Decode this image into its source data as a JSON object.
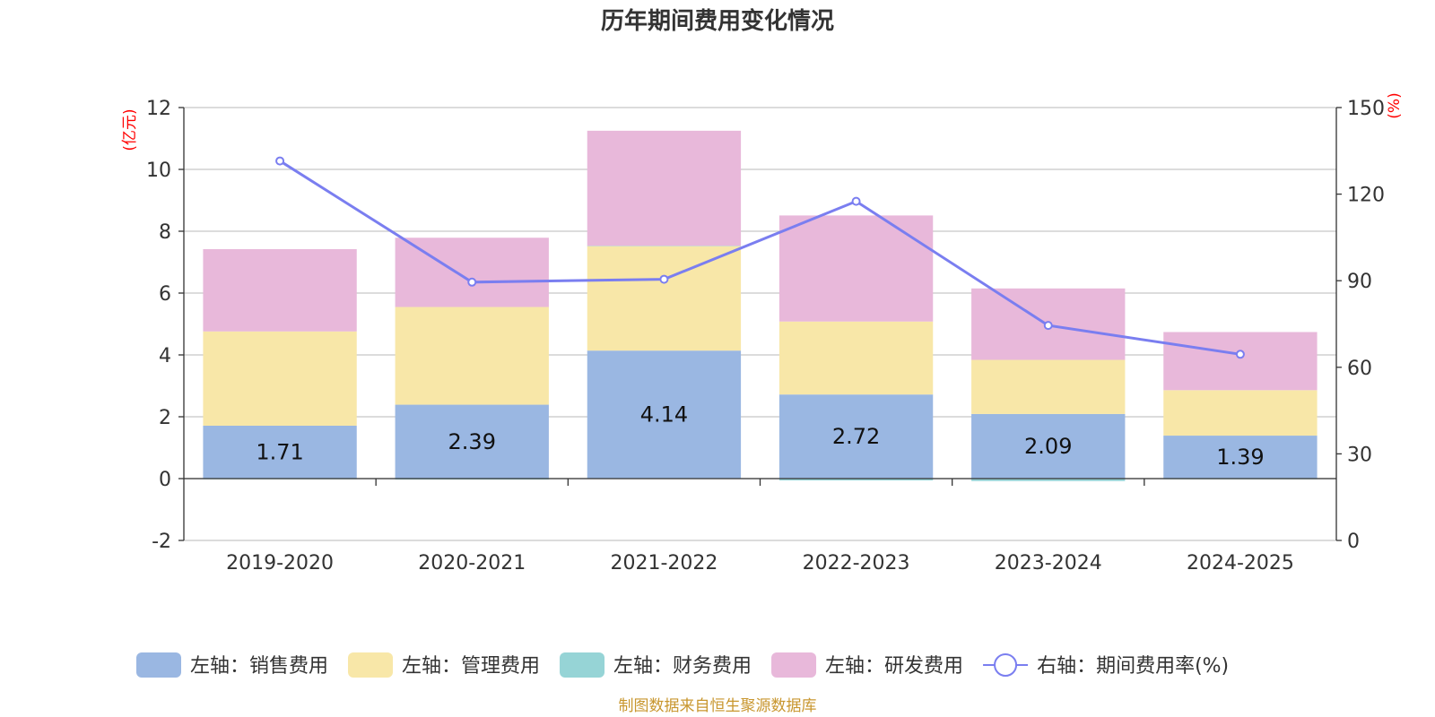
{
  "title": "历年期间费用变化情况",
  "source": "制图数据来自恒生聚源数据库",
  "colors": {
    "sales": "#9ab7e2",
    "admin": "#f8e7a8",
    "finance": "#96d4d6",
    "rd": "#e8b8da",
    "rate": "#7a7ef0",
    "unit": "#ff0000",
    "source": "#c8962e"
  },
  "chart_data": {
    "type": "bar",
    "stacked": true,
    "categories": [
      "2019-2020",
      "2020-2021",
      "2021-2022",
      "2022-2023",
      "2023-2024",
      "2024-2025"
    ],
    "left_axis": {
      "unit": "(亿元)",
      "ylim": [
        -2,
        12
      ],
      "ticks": [
        -2,
        0,
        2,
        4,
        6,
        8,
        10,
        12
      ]
    },
    "right_axis": {
      "unit": "(%)",
      "ylim": [
        0,
        150
      ],
      "ticks": [
        0,
        30,
        60,
        90,
        120,
        150
      ]
    },
    "series": [
      {
        "key": "sales",
        "name": "左轴：销售费用",
        "axis": "left",
        "type": "bar",
        "values": [
          1.71,
          2.39,
          4.14,
          2.72,
          2.09,
          1.39
        ],
        "labels": [
          "1.71",
          "2.39",
          "4.14",
          "2.72",
          "2.09",
          "1.39"
        ]
      },
      {
        "key": "admin",
        "name": "左轴：管理费用",
        "axis": "left",
        "type": "bar",
        "values": [
          3.05,
          3.16,
          3.38,
          2.36,
          1.75,
          1.47
        ]
      },
      {
        "key": "finance",
        "name": "左轴：财务费用",
        "axis": "left",
        "type": "bar",
        "values": [
          -0.02,
          -0.03,
          0.01,
          -0.06,
          -0.08,
          -0.02
        ]
      },
      {
        "key": "rd",
        "name": "左轴：研发费用",
        "axis": "left",
        "type": "bar",
        "values": [
          2.66,
          2.24,
          3.72,
          3.43,
          2.31,
          1.88
        ]
      },
      {
        "key": "rate",
        "name": "右轴：期间费用率(%)",
        "axis": "right",
        "type": "line",
        "values": [
          131.5,
          89.5,
          90.5,
          117.5,
          74.5,
          64.5
        ]
      }
    ],
    "grid": true,
    "legend_position": "bottom"
  }
}
